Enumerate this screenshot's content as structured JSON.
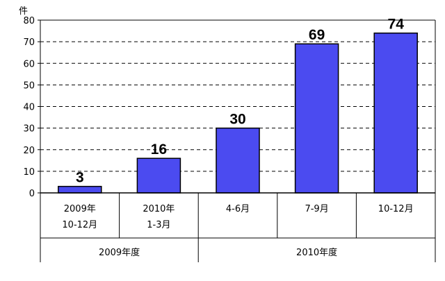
{
  "chart_data": {
    "type": "bar",
    "title": "",
    "xlabel": "",
    "ylabel": "",
    "y_unit": "件",
    "ylim": [
      0,
      80
    ],
    "yticks": [
      0,
      10,
      20,
      30,
      40,
      50,
      60,
      70,
      80
    ],
    "grid": "horizontal dashed",
    "bar_color": "#4b4bf0",
    "categories": [
      [
        "2009年",
        "10-12月"
      ],
      [
        "2010年",
        "1-3月"
      ],
      [
        "4-6月"
      ],
      [
        "7-9月"
      ],
      [
        "10-12月"
      ]
    ],
    "values": [
      3,
      16,
      30,
      69,
      74
    ],
    "data_labels": [
      "3",
      "16",
      "30",
      "69",
      "74"
    ],
    "groups": [
      {
        "label": "2009年度",
        "span": [
          0,
          1
        ]
      },
      {
        "label": "2010年度",
        "span": [
          2,
          4
        ]
      }
    ]
  }
}
